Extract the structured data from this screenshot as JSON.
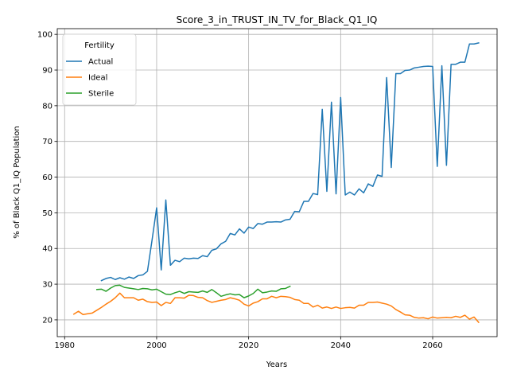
{
  "chart_data": {
    "type": "line",
    "title": "Score_3_in_TRUST_IN_TV_for_Black_Q1_IQ",
    "xlabel": "Years",
    "ylabel": "% of Black Q1_IQ Population",
    "xlim": [
      1978.4,
      2074.0
    ],
    "ylim": [
      15.3,
      101.6
    ],
    "xticks": [
      1980,
      2000,
      2020,
      2040,
      2060
    ],
    "yticks": [
      20,
      30,
      40,
      50,
      60,
      70,
      80,
      90,
      100
    ],
    "grid": true,
    "legend": {
      "title": "Fertility",
      "location": "upper-left"
    },
    "series": [
      {
        "name": "Actual",
        "color": "#1f77b4",
        "x": [
          1988,
          1989,
          1990,
          1991,
          1992,
          1993,
          1994,
          1995,
          1996,
          1997,
          1998,
          1999,
          2000,
          2001,
          2002,
          2003,
          2004,
          2005,
          2006,
          2007,
          2008,
          2009,
          2010,
          2011,
          2012,
          2013,
          2014,
          2015,
          2016,
          2017,
          2018,
          2019,
          2020,
          2021,
          2022,
          2023,
          2024,
          2025,
          2026,
          2027,
          2028,
          2029,
          2030,
          2031,
          2032,
          2033,
          2034,
          2035,
          2036,
          2037,
          2038,
          2039,
          2040,
          2041,
          2042,
          2043,
          2044,
          2045,
          2046,
          2047,
          2048,
          2049,
          2050,
          2051,
          2052,
          2053,
          2054,
          2055,
          2056,
          2057,
          2058,
          2059,
          2060,
          2061,
          2062,
          2063,
          2064,
          2065,
          2066,
          2067,
          2068,
          2069,
          2070
        ],
        "values": [
          31.0,
          31.6,
          31.9,
          31.3,
          31.8,
          31.4,
          32.0,
          31.6,
          32.4,
          32.6,
          33.6,
          42.3,
          51.4,
          34.0,
          53.6,
          35.3,
          36.7,
          36.3,
          37.3,
          37.1,
          37.3,
          37.2,
          38.0,
          37.7,
          39.5,
          39.9,
          41.3,
          42.0,
          44.2,
          43.8,
          45.5,
          44.3,
          46.0,
          45.6,
          47.0,
          46.8,
          47.4,
          47.4,
          47.5,
          47.4,
          48.0,
          48.2,
          50.4,
          50.3,
          53.2,
          53.2,
          55.4,
          55.1,
          79.0,
          56.0,
          81.0,
          55.3,
          82.3,
          55.0,
          55.8,
          55.0,
          56.7,
          55.6,
          58.1,
          57.4,
          60.6,
          60.2,
          87.9,
          62.7,
          89.0,
          89.0,
          89.9,
          90.0,
          90.6,
          90.8,
          91.0,
          91.1,
          91.0,
          63.0,
          91.2,
          63.3,
          91.6,
          91.6,
          92.2,
          92.2,
          97.3,
          97.3,
          97.6
        ]
      },
      {
        "name": "Ideal",
        "color": "#ff7f0e",
        "x": [
          1982,
          1983,
          1984,
          1985,
          1986,
          1987,
          1988,
          1989,
          1990,
          1991,
          1992,
          1993,
          1994,
          1995,
          1996,
          1997,
          1998,
          1999,
          2000,
          2001,
          2002,
          2003,
          2004,
          2005,
          2006,
          2007,
          2008,
          2009,
          2010,
          2011,
          2012,
          2013,
          2014,
          2015,
          2016,
          2017,
          2018,
          2019,
          2020,
          2021,
          2022,
          2023,
          2024,
          2025,
          2026,
          2027,
          2028,
          2029,
          2030,
          2031,
          2032,
          2033,
          2034,
          2035,
          2036,
          2037,
          2038,
          2039,
          2040,
          2041,
          2042,
          2043,
          2044,
          2045,
          2046,
          2047,
          2048,
          2049,
          2050,
          2051,
          2052,
          2053,
          2054,
          2055,
          2056,
          2057,
          2058,
          2059,
          2060,
          2061,
          2062,
          2063,
          2064,
          2065,
          2066,
          2067,
          2068,
          2069,
          2070
        ],
        "values": [
          21.6,
          22.4,
          21.5,
          21.7,
          21.9,
          22.7,
          23.5,
          24.4,
          25.2,
          26.2,
          27.5,
          26.2,
          26.2,
          26.2,
          25.5,
          25.8,
          25.1,
          24.9,
          25.0,
          24.0,
          24.9,
          24.6,
          26.2,
          26.2,
          26.1,
          26.9,
          26.8,
          26.3,
          26.2,
          25.4,
          24.9,
          25.2,
          25.5,
          25.7,
          26.2,
          25.9,
          25.5,
          24.4,
          23.9,
          24.7,
          25.1,
          25.9,
          25.9,
          26.6,
          26.2,
          26.6,
          26.5,
          26.3,
          25.7,
          25.5,
          24.6,
          24.6,
          23.6,
          24.1,
          23.3,
          23.6,
          23.2,
          23.6,
          23.2,
          23.4,
          23.5,
          23.3,
          24.1,
          24.1,
          24.9,
          24.9,
          25.0,
          24.7,
          24.4,
          23.9,
          22.9,
          22.2,
          21.4,
          21.3,
          20.7,
          20.5,
          20.6,
          20.3,
          20.8,
          20.5,
          20.6,
          20.7,
          20.6,
          21.0,
          20.7,
          21.3,
          20.2,
          20.8,
          19.3
        ]
      },
      {
        "name": "Sterile",
        "color": "#2ca02c",
        "x": [
          1987,
          1988,
          1989,
          1990,
          1991,
          1992,
          1993,
          1994,
          1995,
          1996,
          1997,
          1998,
          1999,
          2000,
          2001,
          2002,
          2003,
          2004,
          2005,
          2006,
          2007,
          2008,
          2009,
          2010,
          2011,
          2012,
          2013,
          2014,
          2015,
          2016,
          2017,
          2018,
          2019,
          2020,
          2021,
          2022,
          2023,
          2024,
          2025,
          2026,
          2027,
          2028,
          2029
        ],
        "values": [
          28.5,
          28.6,
          28.0,
          28.9,
          29.6,
          29.7,
          29.1,
          28.9,
          28.7,
          28.5,
          28.8,
          28.7,
          28.4,
          28.6,
          27.9,
          27.2,
          27.1,
          27.6,
          28.0,
          27.4,
          27.9,
          27.8,
          27.7,
          28.1,
          27.7,
          28.5,
          27.6,
          26.6,
          27.0,
          27.3,
          27.0,
          27.1,
          26.2,
          26.7,
          27.4,
          28.6,
          27.6,
          27.8,
          28.1,
          28.0,
          28.7,
          28.8,
          29.4
        ]
      }
    ]
  }
}
